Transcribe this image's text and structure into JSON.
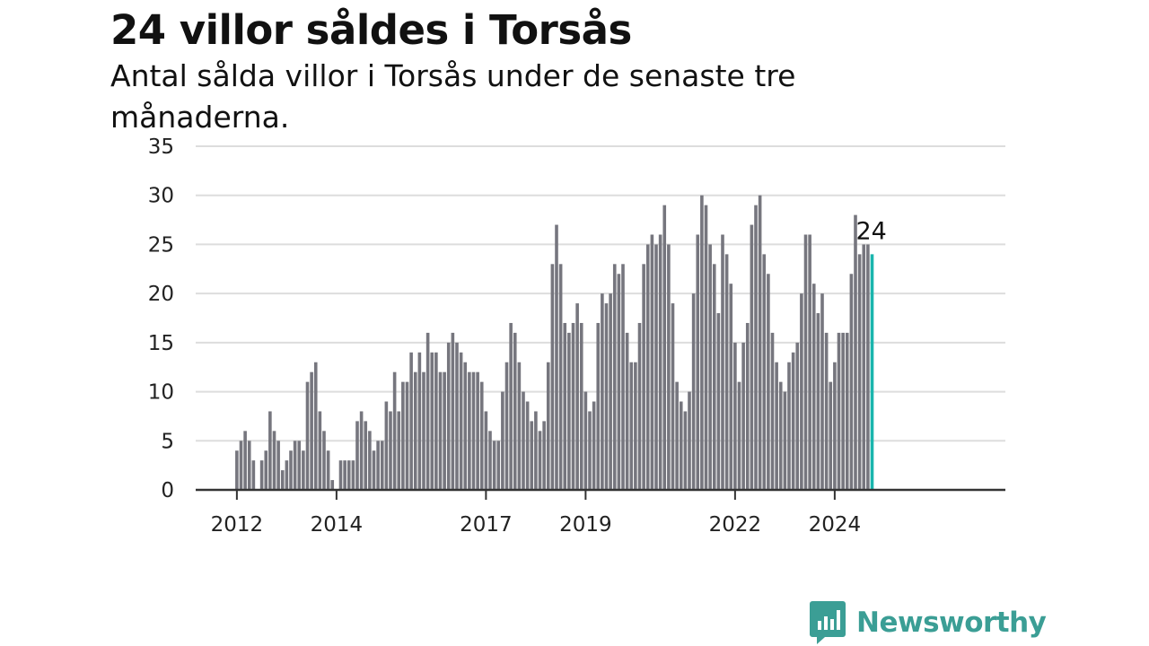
{
  "title": "24 villor såldes i Torsås",
  "subtitle": "Antal sålda villor i Torsås under de senaste tre månaderna.",
  "brand": {
    "name": "Newsworthy",
    "color": "#3b9e95"
  },
  "colors": {
    "bar": "#76767e",
    "highlight": "#1ab5ad",
    "grid": "#dddddd",
    "axis": "#333333"
  },
  "chart_data": {
    "type": "bar",
    "title": "24 villor såldes i Torsås",
    "xlabel": "",
    "ylabel": "",
    "ylim": [
      0,
      35
    ],
    "yticks": [
      0,
      5,
      10,
      15,
      20,
      25,
      30,
      35
    ],
    "xticks": [
      {
        "label": "2012",
        "date": "2012-01"
      },
      {
        "label": "2014",
        "date": "2014-01"
      },
      {
        "label": "2017",
        "date": "2017-01"
      },
      {
        "label": "2019",
        "date": "2019-01"
      },
      {
        "label": "2022",
        "date": "2022-01"
      },
      {
        "label": "2024",
        "date": "2024-01"
      }
    ],
    "start": "2011-10",
    "values": [
      0,
      0,
      0,
      4,
      5,
      6,
      5,
      3,
      0,
      3,
      4,
      8,
      6,
      5,
      2,
      3,
      4,
      5,
      5,
      4,
      11,
      12,
      13,
      8,
      6,
      4,
      1,
      0,
      3,
      3,
      3,
      3,
      7,
      8,
      7,
      6,
      4,
      5,
      5,
      9,
      8,
      12,
      8,
      11,
      11,
      14,
      12,
      14,
      12,
      16,
      14,
      14,
      12,
      12,
      15,
      16,
      15,
      14,
      13,
      12,
      12,
      12,
      11,
      8,
      6,
      5,
      5,
      10,
      13,
      17,
      16,
      13,
      10,
      9,
      7,
      8,
      6,
      7,
      13,
      23,
      27,
      23,
      17,
      16,
      17,
      19,
      17,
      10,
      8,
      9,
      17,
      20,
      19,
      20,
      23,
      22,
      23,
      16,
      13,
      13,
      17,
      23,
      25,
      26,
      25,
      26,
      29,
      25,
      19,
      11,
      9,
      8,
      10,
      20,
      26,
      30,
      29,
      25,
      23,
      18,
      26,
      24,
      21,
      15,
      11,
      15,
      17,
      27,
      29,
      30,
      24,
      22,
      16,
      13,
      11,
      10,
      13,
      14,
      15,
      20,
      26,
      26,
      21,
      18,
      20,
      16,
      11,
      13,
      16,
      16,
      16,
      22,
      28,
      24,
      25,
      25,
      24
    ],
    "highlight_label": "24",
    "grid": true,
    "legend": "none"
  }
}
